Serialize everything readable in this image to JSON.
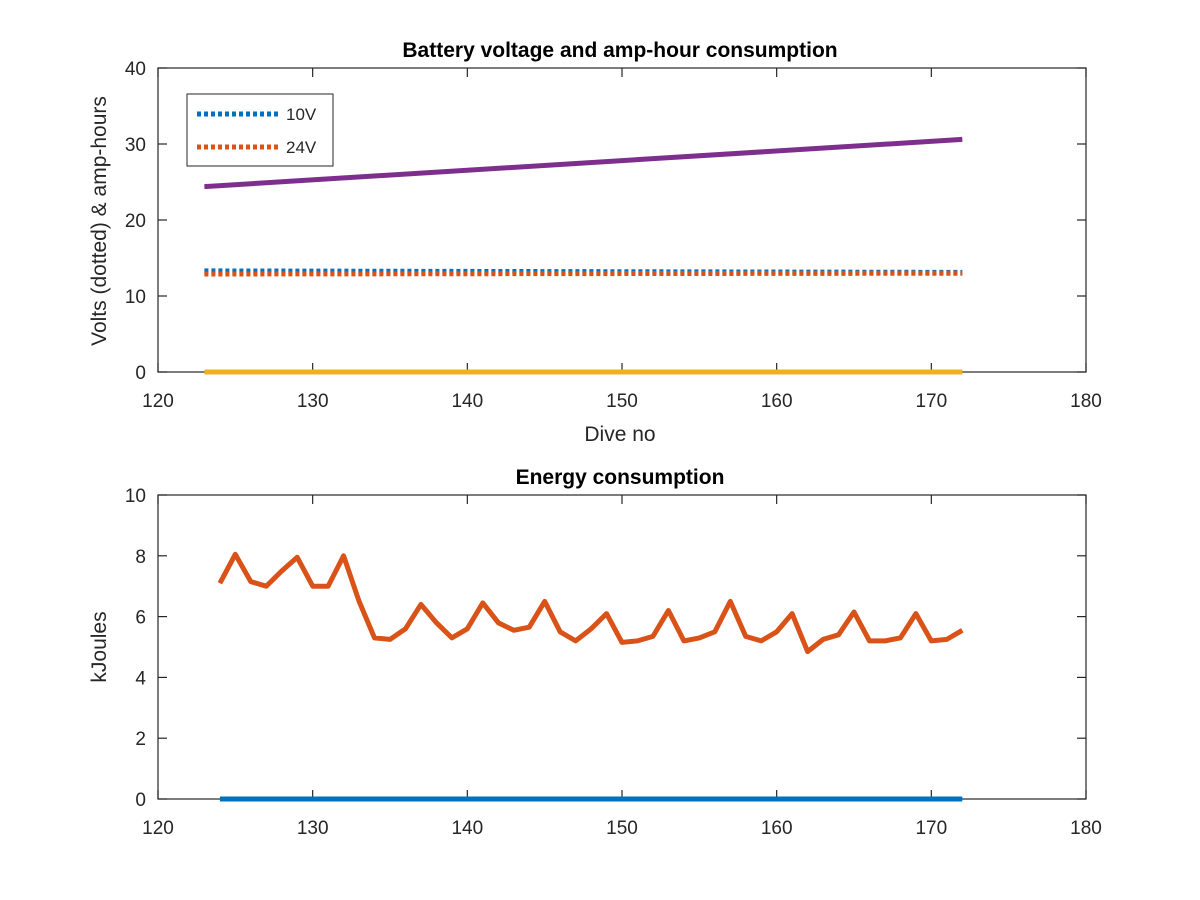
{
  "chart_data": [
    {
      "type": "line",
      "title": "Battery voltage and amp-hour consumption",
      "xlabel": "Dive no",
      "ylabel": "Volts (dotted) & amp-hours",
      "xlim": [
        120,
        180
      ],
      "ylim": [
        0,
        40
      ],
      "xticks": [
        "120",
        "130",
        "140",
        "150",
        "160",
        "170",
        "180"
      ],
      "yticks": [
        "0",
        "10",
        "20",
        "30",
        "40"
      ],
      "grid": false,
      "legend_position": "top-left",
      "legend": [
        "10V",
        "24V"
      ],
      "series": [
        {
          "name": "10V",
          "style": "dotted",
          "color": "#0072BD",
          "x": [
            123,
            172
          ],
          "y": [
            13.3,
            13.1
          ]
        },
        {
          "name": "24V",
          "style": "dotted",
          "color": "#D95319",
          "x": [
            123,
            172
          ],
          "y": [
            12.9,
            13.0
          ]
        },
        {
          "style": "solid",
          "color": "#7E2F8E",
          "x": [
            123,
            172
          ],
          "y": [
            24.4,
            30.6
          ]
        },
        {
          "style": "solid",
          "color": "#EDB120",
          "x": [
            123,
            172
          ],
          "y": [
            0,
            0
          ]
        }
      ]
    },
    {
      "type": "line",
      "title": "Energy consumption",
      "xlabel": "",
      "ylabel": "kJoules",
      "xlim": [
        120,
        180
      ],
      "ylim": [
        0,
        10
      ],
      "xticks": [
        "120",
        "130",
        "140",
        "150",
        "160",
        "170",
        "180"
      ],
      "yticks": [
        "0",
        "2",
        "4",
        "6",
        "8",
        "10"
      ],
      "grid": false,
      "series": [
        {
          "style": "solid",
          "color": "#D95319",
          "x": [
            124,
            125,
            126,
            127,
            128,
            129,
            130,
            131,
            132,
            133,
            134,
            135,
            136,
            137,
            138,
            139,
            140,
            141,
            142,
            143,
            144,
            145,
            146,
            147,
            148,
            149,
            150,
            151,
            152,
            153,
            154,
            155,
            156,
            157,
            158,
            159,
            160,
            161,
            162,
            163,
            164,
            165,
            166,
            167,
            168,
            169,
            170,
            171,
            172
          ],
          "y": [
            7.1,
            8.05,
            7.15,
            7.0,
            7.5,
            7.95,
            7.0,
            7.0,
            8.0,
            6.5,
            5.3,
            5.25,
            5.6,
            6.4,
            5.8,
            5.3,
            5.6,
            6.45,
            5.8,
            5.55,
            5.65,
            6.5,
            5.5,
            5.2,
            5.6,
            6.1,
            5.15,
            5.2,
            5.35,
            6.2,
            5.2,
            5.3,
            5.5,
            6.5,
            5.35,
            5.2,
            5.5,
            6.1,
            4.85,
            5.25,
            5.4,
            6.15,
            5.2,
            5.2,
            5.3,
            6.1,
            5.2,
            5.25,
            5.55
          ]
        },
        {
          "style": "solid",
          "color": "#0072BD",
          "x": [
            124,
            172
          ],
          "y": [
            0,
            0
          ]
        }
      ]
    }
  ]
}
